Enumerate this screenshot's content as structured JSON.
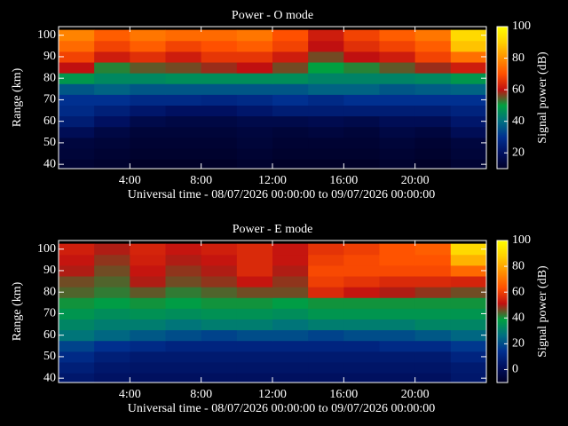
{
  "chart_data": [
    {
      "type": "heatmap",
      "title": "Power - O mode",
      "y_label": "Range (km)",
      "x_label": "Universal time - 08/07/2026 00:00:00 to 09/07/2026 00:00:00",
      "colorbar_label": "Signal power (dB)",
      "x": [
        1,
        3,
        5,
        7,
        9,
        11,
        13,
        15,
        17,
        19,
        21,
        23
      ],
      "y": [
        40,
        45,
        50,
        55,
        60,
        65,
        70,
        75,
        80,
        85,
        90,
        95,
        100
      ],
      "z": [
        [
          12,
          11,
          10,
          10,
          10,
          11,
          10,
          10,
          10,
          11,
          10,
          12
        ],
        [
          13,
          12,
          11,
          11,
          11,
          12,
          11,
          11,
          11,
          12,
          11,
          13
        ],
        [
          14,
          13,
          12,
          12,
          12,
          13,
          12,
          12,
          12,
          13,
          12,
          14
        ],
        [
          18,
          15,
          13,
          13,
          13,
          14,
          13,
          14,
          13,
          15,
          14,
          18
        ],
        [
          24,
          20,
          16,
          15,
          15,
          16,
          16,
          17,
          16,
          18,
          18,
          22
        ],
        [
          28,
          25,
          22,
          20,
          20,
          22,
          24,
          24,
          24,
          24,
          24,
          26
        ],
        [
          30,
          30,
          28,
          28,
          27,
          28,
          30,
          28,
          30,
          30,
          30,
          30
        ],
        [
          36,
          38,
          36,
          36,
          36,
          36,
          36,
          38,
          38,
          36,
          37,
          38
        ],
        [
          48,
          45,
          45,
          46,
          46,
          46,
          46,
          44,
          44,
          44,
          45,
          48
        ],
        [
          60,
          52,
          55,
          56,
          58,
          60,
          56,
          50,
          52,
          55,
          58,
          62
        ],
        [
          68,
          62,
          65,
          62,
          66,
          66,
          62,
          56,
          60,
          62,
          68,
          75
        ],
        [
          74,
          68,
          72,
          68,
          70,
          72,
          68,
          60,
          65,
          68,
          72,
          88
        ],
        [
          78,
          72,
          76,
          74,
          74,
          76,
          70,
          62,
          68,
          72,
          76,
          92
        ]
      ],
      "xlim": [
        0,
        24
      ],
      "ylim": [
        38,
        104
      ],
      "xticks": [
        {
          "value": 4,
          "label": "4:00"
        },
        {
          "value": 8,
          "label": "8:00"
        },
        {
          "value": 12,
          "label": "12:00"
        },
        {
          "value": 16,
          "label": "16:00"
        },
        {
          "value": 20,
          "label": "20:00"
        }
      ],
      "yticks": [
        40,
        50,
        60,
        70,
        80,
        90,
        100
      ],
      "clim": [
        10,
        100
      ],
      "cticks": [
        20,
        40,
        60,
        80,
        100
      ],
      "colormap": [
        "#000028",
        "#001060",
        "#003090",
        "#007080",
        "#00a040",
        "#c01010",
        "#ff5000",
        "#ff9000",
        "#ffd000",
        "#ffff00"
      ]
    },
    {
      "type": "heatmap",
      "title": "Power - E mode",
      "y_label": "Range (km)",
      "x_label": "Universal time - 08/07/2026 00:00:00 to 09/07/2026 00:00:00",
      "colorbar_label": "Signal power (dB)",
      "x": [
        1,
        3,
        5,
        7,
        9,
        11,
        13,
        15,
        17,
        19,
        21,
        23
      ],
      "y": [
        40,
        45,
        50,
        55,
        60,
        65,
        70,
        75,
        80,
        85,
        90,
        95,
        100
      ],
      "z": [
        [
          5,
          3,
          2,
          2,
          2,
          2,
          2,
          2,
          2,
          2,
          2,
          5
        ],
        [
          8,
          5,
          4,
          4,
          4,
          4,
          4,
          4,
          4,
          4,
          4,
          6
        ],
        [
          12,
          8,
          6,
          6,
          6,
          6,
          6,
          6,
          6,
          6,
          6,
          10
        ],
        [
          18,
          14,
          12,
          10,
          10,
          10,
          10,
          10,
          10,
          12,
          12,
          16
        ],
        [
          28,
          25,
          22,
          20,
          18,
          20,
          20,
          18,
          20,
          20,
          22,
          25
        ],
        [
          32,
          30,
          30,
          28,
          30,
          30,
          28,
          30,
          30,
          30,
          32,
          32
        ],
        [
          36,
          34,
          35,
          34,
          35,
          35,
          34,
          36,
          36,
          36,
          36,
          36
        ],
        [
          40,
          38,
          40,
          38,
          40,
          40,
          38,
          40,
          40,
          40,
          40,
          40
        ],
        [
          44,
          42,
          45,
          42,
          44,
          46,
          46,
          56,
          52,
          50,
          48,
          46
        ],
        [
          46,
          44,
          50,
          46,
          48,
          52,
          48,
          60,
          58,
          56,
          56,
          55
        ],
        [
          50,
          46,
          52,
          48,
          50,
          56,
          50,
          62,
          62,
          62,
          62,
          68
        ],
        [
          52,
          48,
          54,
          50,
          52,
          56,
          52,
          60,
          62,
          64,
          64,
          82
        ],
        [
          54,
          50,
          55,
          52,
          54,
          56,
          52,
          58,
          60,
          64,
          66,
          90
        ]
      ],
      "xlim": [
        0,
        24
      ],
      "ylim": [
        38,
        104
      ],
      "xticks": [
        {
          "value": 4,
          "label": "4:00"
        },
        {
          "value": 8,
          "label": "8:00"
        },
        {
          "value": 12,
          "label": "12:00"
        },
        {
          "value": 16,
          "label": "16:00"
        },
        {
          "value": 20,
          "label": "20:00"
        }
      ],
      "yticks": [
        40,
        50,
        60,
        70,
        80,
        90,
        100
      ],
      "clim": [
        -10,
        100
      ],
      "cticks": [
        0,
        20,
        40,
        60,
        80,
        100
      ],
      "colormap": [
        "#000028",
        "#001060",
        "#003090",
        "#007080",
        "#00a040",
        "#c01010",
        "#ff5000",
        "#ff9000",
        "#ffd000",
        "#ffff00"
      ]
    }
  ]
}
